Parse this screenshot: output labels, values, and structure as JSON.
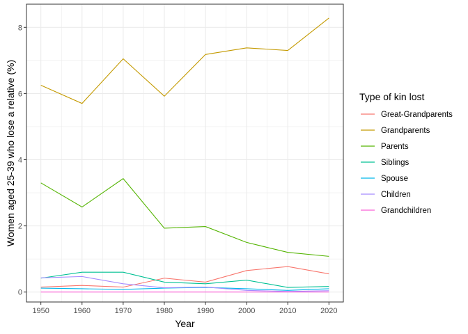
{
  "chart_data": {
    "type": "line",
    "title": "",
    "xlabel": "Year",
    "ylabel": "Women aged 25-39 who lose a relative (%)",
    "x": [
      1950,
      1960,
      1970,
      1980,
      1990,
      2000,
      2010,
      2020
    ],
    "xticks": [
      "1950",
      "1960",
      "1970",
      "1980",
      "1990",
      "2000",
      "2010",
      "2020"
    ],
    "yticks": [
      "0",
      "2",
      "4",
      "6",
      "8"
    ],
    "xlim": [
      1946.5,
      2023.5
    ],
    "ylim": [
      -0.3,
      8.7
    ],
    "grid": true,
    "legend": {
      "title": "Type of kin lost",
      "placement": "right"
    },
    "series": [
      {
        "name": "Great-Grandparents",
        "color": "#F8766D",
        "values": [
          0.15,
          0.2,
          0.15,
          0.42,
          0.3,
          0.65,
          0.77,
          0.55
        ]
      },
      {
        "name": "Grandparents",
        "color": "#C49A00",
        "values": [
          6.25,
          5.7,
          7.05,
          5.92,
          7.18,
          7.38,
          7.3,
          8.28
        ]
      },
      {
        "name": "Parents",
        "color": "#53B400",
        "values": [
          3.3,
          2.57,
          3.43,
          1.93,
          1.98,
          1.5,
          1.2,
          1.08
        ]
      },
      {
        "name": "Siblings",
        "color": "#00C094",
        "values": [
          0.42,
          0.6,
          0.6,
          0.3,
          0.25,
          0.36,
          0.14,
          0.17
        ]
      },
      {
        "name": "Spouse",
        "color": "#00B6EB",
        "values": [
          0.12,
          0.1,
          0.08,
          0.12,
          0.14,
          0.1,
          0.05,
          0.1
        ]
      },
      {
        "name": "Children",
        "color": "#A58AFF",
        "values": [
          0.43,
          0.47,
          0.25,
          0.13,
          0.15,
          0.05,
          0.02,
          0.04
        ]
      },
      {
        "name": "Grandchildren",
        "color": "#FB61D7",
        "values": [
          0.0,
          0.0,
          0.0,
          0.0,
          0.0,
          0.0,
          0.0,
          0.0
        ]
      }
    ]
  }
}
